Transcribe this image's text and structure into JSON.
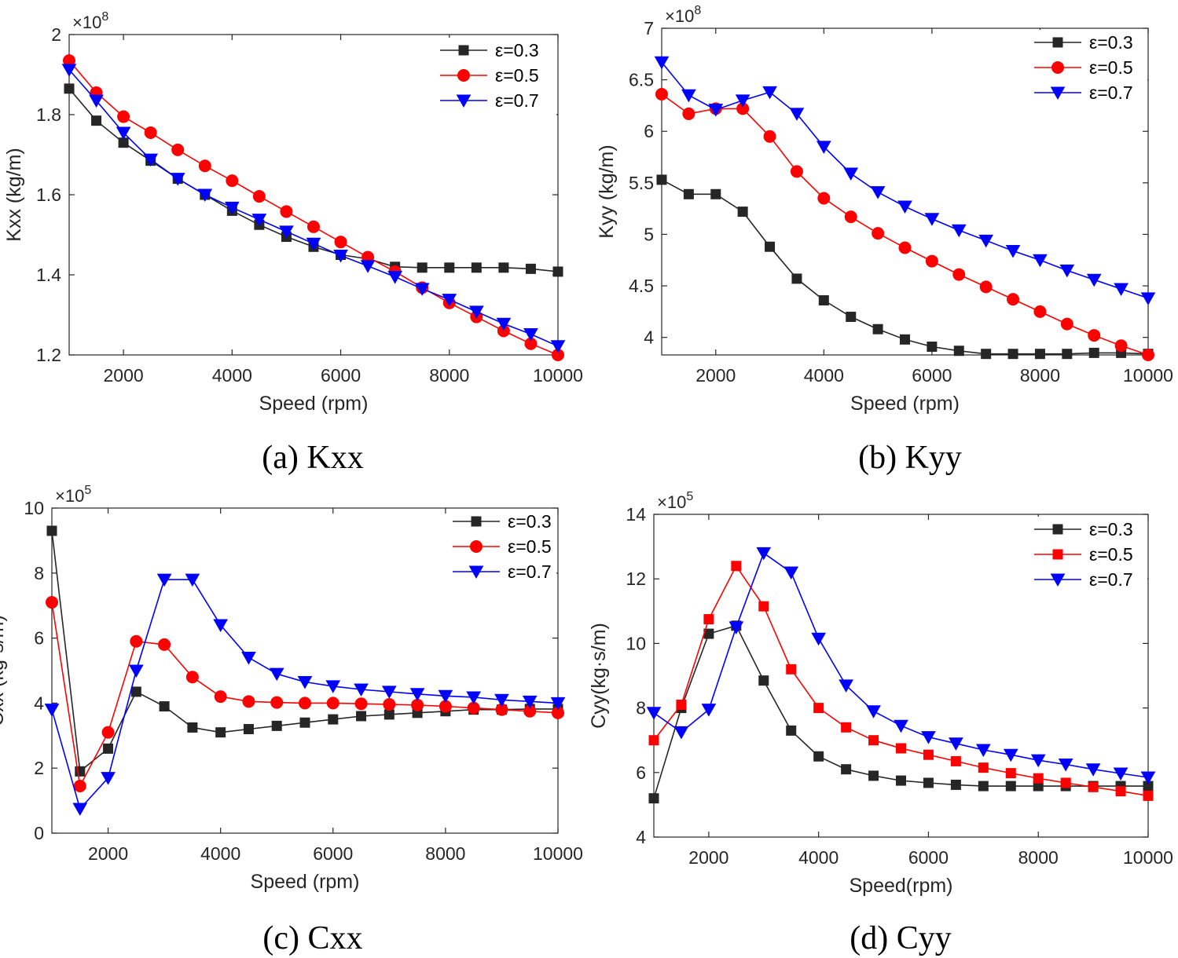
{
  "chart_data": [
    {
      "type": "line",
      "caption": "(a) Kxx",
      "xlabel": "Speed (rpm)",
      "ylabel": "Kxx (kg/m)",
      "exponent": "×10",
      "exponent_power": "8",
      "xlim": [
        1000,
        10000
      ],
      "ylim": [
        1.2,
        2.0
      ],
      "xticks": [
        2000,
        4000,
        6000,
        8000,
        10000
      ],
      "xtick_labels": [
        "2000",
        "4000",
        "6000",
        "8000",
        "10000"
      ],
      "yticks": [
        1.2,
        1.4,
        1.6,
        1.8,
        2.0
      ],
      "ytick_labels": [
        "1.2",
        "1.4",
        "1.6",
        "1.8",
        "2"
      ],
      "legend_position": "top-right",
      "x": [
        1000,
        1500,
        2000,
        2500,
        3000,
        3500,
        4000,
        4500,
        5000,
        5500,
        6000,
        6500,
        7000,
        7500,
        8000,
        8500,
        9000,
        9500,
        10000
      ],
      "series": [
        {
          "name": "ε=0.3",
          "color": "#262626",
          "marker": "square",
          "values": [
            1.865,
            1.785,
            1.73,
            1.685,
            1.64,
            1.6,
            1.56,
            1.525,
            1.495,
            1.47,
            1.45,
            1.44,
            1.42,
            1.418,
            1.418,
            1.418,
            1.418,
            1.415,
            1.408
          ]
        },
        {
          "name": "ε=0.5",
          "color": "#ff0000",
          "marker": "circle",
          "values": [
            1.935,
            1.855,
            1.795,
            1.755,
            1.712,
            1.672,
            1.635,
            1.596,
            1.558,
            1.52,
            1.482,
            1.444,
            1.408,
            1.368,
            1.33,
            1.295,
            1.26,
            1.228,
            1.2
          ]
        },
        {
          "name": "ε=0.7",
          "color": "#0000ff",
          "marker": "triangle-down",
          "values": [
            1.912,
            1.835,
            1.755,
            1.688,
            1.64,
            1.6,
            1.568,
            1.538,
            1.508,
            1.478,
            1.448,
            1.422,
            1.395,
            1.365,
            1.338,
            1.308,
            1.278,
            1.252,
            1.222
          ]
        }
      ]
    },
    {
      "type": "line",
      "caption": "(b) Kyy",
      "xlabel": "Speed (rpm)",
      "ylabel": "Kyy (kg/m)",
      "exponent": "×10",
      "exponent_power": "8",
      "xlim": [
        1000,
        10000
      ],
      "ylim": [
        3.83,
        7.0
      ],
      "xticks": [
        2000,
        4000,
        6000,
        8000,
        10000
      ],
      "xtick_labels": [
        "2000",
        "4000",
        "6000",
        "8000",
        "10000"
      ],
      "yticks": [
        4.0,
        4.5,
        5.0,
        5.5,
        6.0,
        6.5,
        7.0
      ],
      "ytick_labels": [
        "4",
        "4.5",
        "5",
        "5.5",
        "6",
        "6.5",
        "7"
      ],
      "legend_position": "top-right",
      "x": [
        1000,
        1500,
        2000,
        2500,
        3000,
        3500,
        4000,
        4500,
        5000,
        5500,
        6000,
        6500,
        7000,
        7500,
        8000,
        8500,
        9000,
        9500,
        10000
      ],
      "series": [
        {
          "name": "ε=0.3",
          "color": "#262626",
          "marker": "square",
          "values": [
            5.53,
            5.39,
            5.39,
            5.22,
            4.88,
            4.57,
            4.36,
            4.2,
            4.08,
            3.98,
            3.91,
            3.87,
            3.84,
            3.84,
            3.84,
            3.84,
            3.85,
            3.85,
            3.84
          ]
        },
        {
          "name": "ε=0.5",
          "color": "#ff0000",
          "marker": "circle",
          "values": [
            6.36,
            6.17,
            6.22,
            6.22,
            5.95,
            5.61,
            5.35,
            5.17,
            5.01,
            4.87,
            4.74,
            4.61,
            4.49,
            4.37,
            4.25,
            4.13,
            4.02,
            3.92,
            3.83
          ]
        },
        {
          "name": "ε=0.7",
          "color": "#0000ff",
          "marker": "triangle-down",
          "values": [
            6.67,
            6.35,
            6.21,
            6.3,
            6.38,
            6.17,
            5.85,
            5.59,
            5.41,
            5.27,
            5.15,
            5.04,
            4.94,
            4.84,
            4.75,
            4.65,
            4.56,
            4.47,
            4.38
          ]
        }
      ]
    },
    {
      "type": "line",
      "caption": "(c) Cxx",
      "xlabel": "Speed (rpm)",
      "ylabel": "Cxx (kg·s/m)",
      "exponent": "×10",
      "exponent_power": "5",
      "xlim": [
        1000,
        10000
      ],
      "ylim": [
        0,
        10
      ],
      "xticks": [
        2000,
        4000,
        6000,
        8000,
        10000
      ],
      "xtick_labels": [
        "2000",
        "4000",
        "6000",
        "8000",
        "10000"
      ],
      "yticks": [
        0,
        2,
        4,
        6,
        8,
        10
      ],
      "ytick_labels": [
        "0",
        "2",
        "4",
        "6",
        "8",
        "10"
      ],
      "legend_position": "top-right",
      "x": [
        1000,
        1500,
        2000,
        2500,
        3000,
        3500,
        4000,
        4500,
        5000,
        5500,
        6000,
        6500,
        7000,
        7500,
        8000,
        8500,
        9000,
        9500,
        10000
      ],
      "series": [
        {
          "name": "ε=0.3",
          "color": "#262626",
          "marker": "square",
          "values": [
            9.3,
            1.9,
            2.6,
            4.35,
            3.9,
            3.25,
            3.1,
            3.2,
            3.3,
            3.4,
            3.5,
            3.6,
            3.65,
            3.7,
            3.75,
            3.8,
            3.8,
            3.82,
            3.82
          ]
        },
        {
          "name": "ε=0.5",
          "color": "#ff0000",
          "marker": "circle",
          "values": [
            7.1,
            1.45,
            3.1,
            5.9,
            5.8,
            4.8,
            4.2,
            4.05,
            4.02,
            4.0,
            4.0,
            3.98,
            3.96,
            3.94,
            3.9,
            3.85,
            3.8,
            3.75,
            3.7
          ]
        },
        {
          "name": "ε=0.7",
          "color": "#0000ff",
          "marker": "triangle-down",
          "values": [
            3.8,
            0.75,
            1.7,
            5.0,
            7.8,
            7.8,
            6.4,
            5.4,
            4.9,
            4.65,
            4.52,
            4.42,
            4.35,
            4.28,
            4.22,
            4.18,
            4.1,
            4.05,
            4.0
          ]
        }
      ]
    },
    {
      "type": "line",
      "caption": "(d) Cyy",
      "xlabel": "Speed(rpm)",
      "ylabel": "Cyy(kg·s/m)",
      "exponent": "×10",
      "exponent_power": "5",
      "xlim": [
        1000,
        10000
      ],
      "ylim": [
        4,
        14
      ],
      "xticks": [
        2000,
        4000,
        6000,
        8000,
        10000
      ],
      "xtick_labels": [
        "2000",
        "4000",
        "6000",
        "8000",
        "10000"
      ],
      "yticks": [
        4,
        6,
        8,
        10,
        12,
        14
      ],
      "ytick_labels": [
        "4",
        "6",
        "8",
        "10",
        "12",
        "14"
      ],
      "legend_position": "top-right",
      "x": [
        1000,
        1500,
        2000,
        2500,
        3000,
        3500,
        4000,
        4500,
        5000,
        5500,
        6000,
        6500,
        7000,
        7500,
        8000,
        8500,
        9000,
        9500,
        10000
      ],
      "series": [
        {
          "name": "ε=0.3",
          "color": "#262626",
          "marker": "square",
          "values": [
            5.2,
            8.0,
            10.3,
            10.55,
            8.85,
            7.3,
            6.5,
            6.1,
            5.9,
            5.75,
            5.68,
            5.62,
            5.58,
            5.58,
            5.58,
            5.58,
            5.58,
            5.58,
            5.58
          ]
        },
        {
          "name": "ε=0.5",
          "color": "#ff0000",
          "marker": "square",
          "values": [
            7.0,
            8.1,
            10.75,
            12.4,
            11.15,
            9.2,
            8.0,
            7.4,
            7.0,
            6.75,
            6.55,
            6.35,
            6.15,
            5.98,
            5.82,
            5.68,
            5.55,
            5.42,
            5.28
          ]
        },
        {
          "name": "ε=0.7",
          "color": "#0000ff",
          "marker": "triangle-down",
          "values": [
            7.85,
            7.25,
            7.95,
            10.5,
            12.8,
            12.2,
            10.15,
            8.7,
            7.9,
            7.45,
            7.1,
            6.9,
            6.7,
            6.55,
            6.38,
            6.25,
            6.1,
            5.97,
            5.85
          ]
        }
      ]
    }
  ]
}
